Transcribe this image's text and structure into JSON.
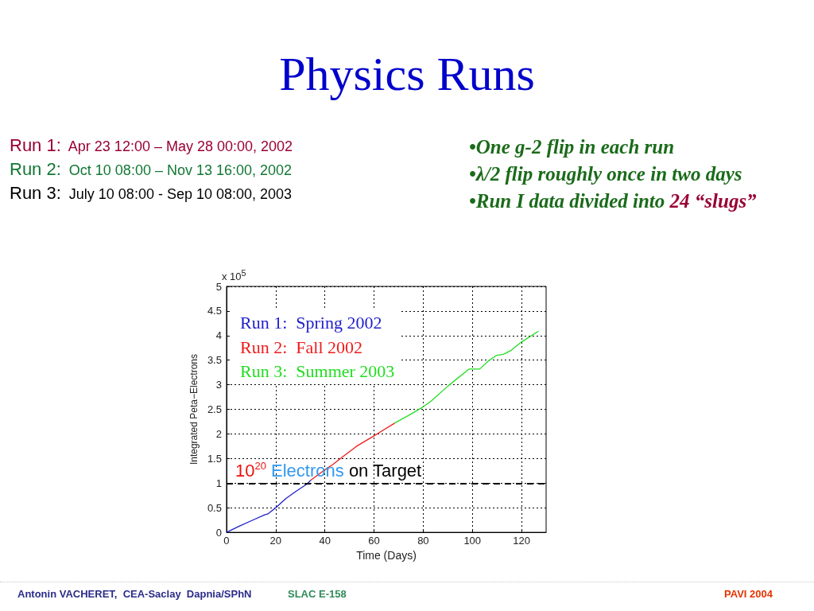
{
  "chart_data": {
    "type": "line",
    "title": "Physics Runs",
    "xlabel": "Time (Days)",
    "ylabel": "Integrated Peta−Electrons",
    "annotations": [
      "Run 1:  Apr 23 12:00 – May 28 00:00, 2002",
      "Run 2:  Oct 10 08:00 – Nov 13 16:00, 2002",
      "Run 3:  July 10 08:00 - Sep 10 08:00, 2003",
      "•One g-2 flip in each run",
      "•λ/2 flip roughly once in two days",
      "•Run I data divided into 24 “slugs”",
      "x 10$^{5}$",
      "Antonin VACHERET,  CEA-Saclay  Dapnia/SPhN",
      "SLAC E-158",
      "PAVI 2004"
    ],
    "xlim": [
      0,
      130
    ],
    "xticks": [
      0,
      20,
      40,
      60,
      80,
      100,
      120
    ],
    "ylim": [
      0,
      5
    ],
    "yticks": [
      0,
      0.5,
      1,
      1.5,
      2,
      2.5,
      3,
      3.5,
      4,
      4.5,
      5
    ],
    "grid": true,
    "legend": "top left",
    "series": [
      {
        "name": "Run 1:  Spring 2002",
        "color": "#2020cc",
        "x": [
          0,
          5,
          10.3,
          15.7,
          16.7,
          20,
          24.2,
          28.4,
          32.7,
          34.3
        ],
        "values": [
          0,
          0.12,
          0.24,
          0.36,
          0.37,
          0.5,
          0.69,
          0.84,
          0.98,
          1.06
        ]
      },
      {
        "name": "Run 2:  Fall 2002",
        "color": "#ee1c1c",
        "x": [
          34.3,
          40,
          43.3,
          47.1,
          52.9,
          60,
          62.5,
          68.4
        ],
        "values": [
          1.06,
          1.27,
          1.38,
          1.53,
          1.75,
          1.96,
          2.04,
          2.22
        ]
      },
      {
        "name": "Run 3:  Summer 2003",
        "color": "#22dd22",
        "x": [
          68.4,
          75.9,
          79.6,
          83.3,
          90.2,
          98.7,
          103,
          106.7,
          109.9,
          112.6,
          115.8,
          120,
          126.9
        ],
        "values": [
          2.22,
          2.43,
          2.54,
          2.67,
          2.98,
          3.32,
          3.32,
          3.49,
          3.6,
          3.62,
          3.7,
          3.87,
          4.09
        ]
      }
    ],
    "ref_lines": [
      {
        "axis": "y",
        "value": 1,
        "label": "10$^{20}$ Electrons on Target",
        "color": "#000000",
        "line_style": "dashed"
      }
    ]
  }
}
